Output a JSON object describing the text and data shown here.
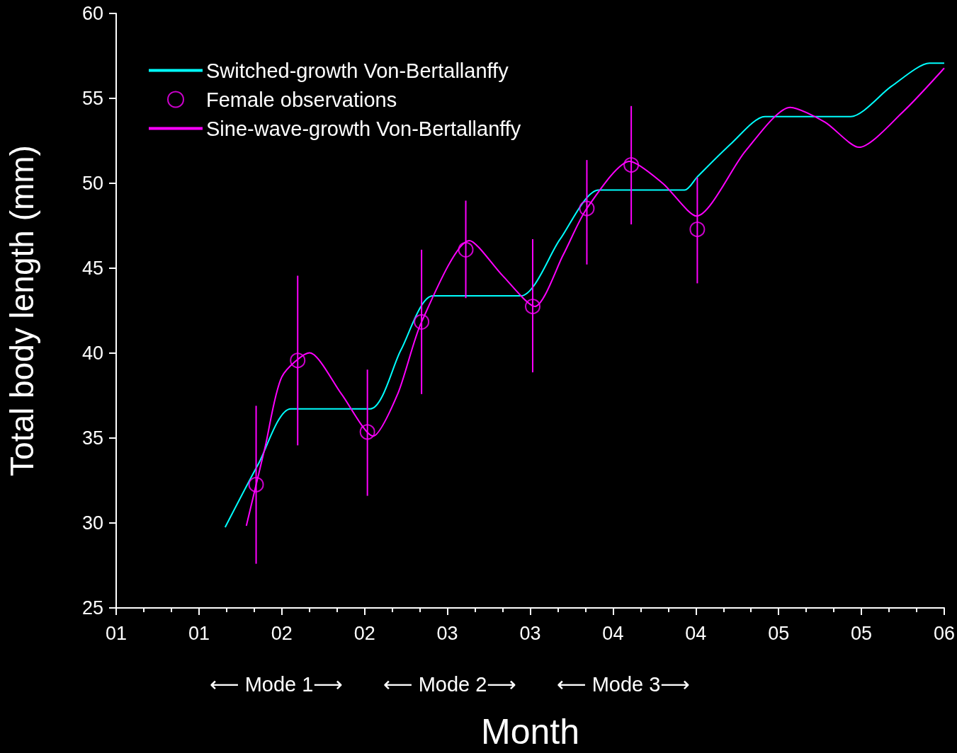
{
  "chart_data": {
    "type": "line",
    "xlabel": "Month",
    "ylabel": "Total body length (mm)",
    "xlim": [
      1,
      6
    ],
    "xticks": [
      {
        "value": 1,
        "label": "01"
      },
      {
        "value": 1.5,
        "label": "01"
      },
      {
        "value": 2,
        "label": "02"
      },
      {
        "value": 2.5,
        "label": "02"
      },
      {
        "value": 3,
        "label": "03"
      },
      {
        "value": 3.5,
        "label": "03"
      },
      {
        "value": 4,
        "label": "04"
      },
      {
        "value": 4.5,
        "label": "04"
      },
      {
        "value": 5,
        "label": "05"
      },
      {
        "value": 5.5,
        "label": "05"
      },
      {
        "value": 6,
        "label": "06"
      }
    ],
    "ylim": [
      25,
      60
    ],
    "yticks": [
      25,
      30,
      35,
      40,
      45,
      50,
      55,
      60
    ],
    "grid": false,
    "legend": "top left",
    "annotations": [
      "⟵ Mode 1⟶",
      "⟵ Mode 2⟶",
      "⟵ Mode 3⟶"
    ],
    "series": [
      {
        "name": "Switched-growth Von-Bertallanffy",
        "color": "#00ffff",
        "marker": "none",
        "line_style": "solid",
        "x": [
          1.658,
          1.86,
          2.054,
          2.534,
          2.72,
          2.912,
          3.443,
          3.68,
          3.914,
          4.432,
          4.509,
          4.72,
          4.917,
          5.435,
          5.68,
          5.911,
          6.0
        ],
        "values": [
          29.75,
          33.5,
          36.72,
          36.72,
          40.2,
          43.37,
          43.37,
          46.7,
          49.6,
          49.6,
          50.38,
          52.4,
          53.93,
          53.93,
          55.7,
          57.07,
          57.07
        ]
      },
      {
        "name": "Female observations",
        "type": "scatter",
        "color": "#ff00ff",
        "marker": "circle",
        "x": [
          1.845,
          2.096,
          2.517,
          2.844,
          3.111,
          3.515,
          3.842,
          4.11,
          4.509
        ],
        "values": [
          32.26,
          39.57,
          35.36,
          41.84,
          46.09,
          42.75,
          48.52,
          51.08,
          47.29
        ],
        "errors": [
          [
            27.6,
            36.9
          ],
          [
            34.57,
            44.56
          ],
          [
            31.6,
            39.03
          ],
          [
            37.59,
            46.09
          ],
          [
            43.24,
            48.98
          ],
          [
            38.87,
            46.71
          ],
          [
            45.22,
            51.37
          ],
          [
            47.58,
            54.55
          ],
          [
            44.11,
            50.34
          ]
        ]
      },
      {
        "name": "Sine-wave-growth Von-Bertallanffy",
        "color": "#ff00ff",
        "marker": "none",
        "line_style": "solid",
        "x": [
          1.786,
          1.9,
          2.0,
          2.168,
          2.36,
          2.551,
          2.7,
          2.844,
          3.133,
          3.33,
          3.528,
          3.7,
          3.842,
          4.101,
          4.3,
          4.505,
          4.8,
          5.07,
          5.28,
          5.486,
          5.75,
          6.0
        ],
        "values": [
          29.83,
          34.5,
          38.6,
          40.02,
          37.6,
          35.11,
          37.6,
          41.84,
          46.63,
          44.6,
          42.75,
          45.8,
          48.52,
          51.29,
          50.0,
          48.07,
          51.9,
          54.47,
          53.6,
          52.12,
          54.2,
          56.78
        ]
      }
    ]
  }
}
